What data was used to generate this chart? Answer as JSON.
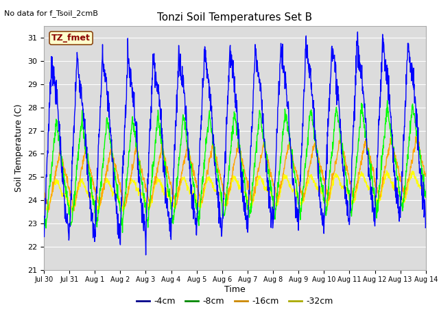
{
  "title": "Tonzi Soil Temperatures Set B",
  "no_data_text": "No data for f_Tsoil_2cmB",
  "xlabel": "Time",
  "ylabel": "Soil Temperature (C)",
  "ylim": [
    21.0,
    31.5
  ],
  "yticks": [
    21.0,
    22.0,
    23.0,
    24.0,
    25.0,
    26.0,
    27.0,
    28.0,
    29.0,
    30.0,
    31.0
  ],
  "xtick_labels": [
    "Jul 30",
    "Jul 31",
    "Aug 1",
    "Aug 2",
    "Aug 3",
    "Aug 4",
    "Aug 5",
    "Aug 6",
    "Aug 7",
    "Aug 8",
    "Aug 9",
    "Aug 10",
    "Aug 11",
    "Aug 12",
    "Aug 13",
    "Aug 14"
  ],
  "legend_label": "TZ_fmet",
  "bg_color": "#dcdcdc",
  "line_colors": [
    "#0000ff",
    "#00ff00",
    "#ffa500",
    "#ffff00"
  ],
  "line_labels": [
    "-4cm",
    "-8cm",
    "-16cm",
    "-32cm"
  ],
  "legend_line_colors": [
    "#00008b",
    "#008800",
    "#cc8800",
    "#aaaa00"
  ],
  "figsize": [
    6.4,
    4.8
  ],
  "dpi": 100
}
